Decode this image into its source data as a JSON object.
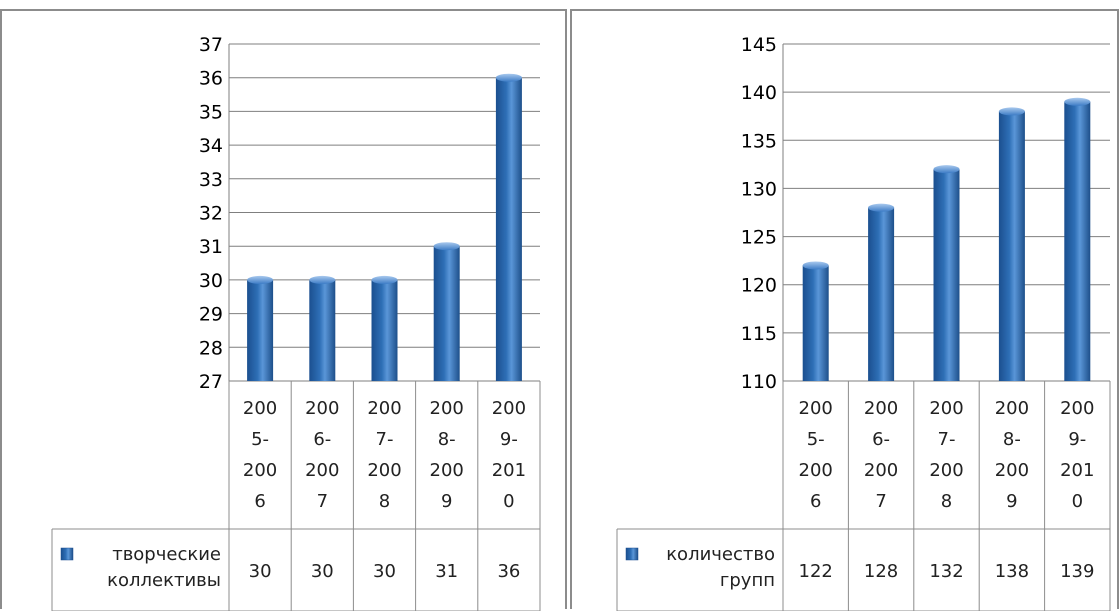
{
  "chart_data": [
    {
      "type": "bar",
      "categories": [
        "2005-2006",
        "2006-2007",
        "2007-2008",
        "2008-2009",
        "2009-2010"
      ],
      "category_lines": [
        [
          "200",
          "5-",
          "200",
          "6"
        ],
        [
          "200",
          "6-",
          "200",
          "7"
        ],
        [
          "200",
          "7-",
          "200",
          "8"
        ],
        [
          "200",
          "8-",
          "200",
          "9"
        ],
        [
          "200",
          "9-",
          "201",
          "0"
        ]
      ],
      "series": [
        {
          "name": "творческие коллективы",
          "name_lines": [
            "творческие",
            "коллективы"
          ],
          "values": [
            30,
            30,
            30,
            31,
            36
          ]
        }
      ],
      "ylim": [
        27,
        37
      ],
      "yticks": [
        27,
        28,
        29,
        30,
        31,
        32,
        33,
        34,
        35,
        36,
        37
      ],
      "grid": true,
      "legend": "data-table",
      "bar_color": "#2e6fb6"
    },
    {
      "type": "bar",
      "categories": [
        "2005-2006",
        "2006-2007",
        "2007-2008",
        "2008-2009",
        "2009-2010"
      ],
      "category_lines": [
        [
          "200",
          "5-",
          "200",
          "6"
        ],
        [
          "200",
          "6-",
          "200",
          "7"
        ],
        [
          "200",
          "7-",
          "200",
          "8"
        ],
        [
          "200",
          "8-",
          "200",
          "9"
        ],
        [
          "200",
          "9-",
          "201",
          "0"
        ]
      ],
      "series": [
        {
          "name": "количество групп",
          "name_lines": [
            "количество",
            "групп"
          ],
          "values": [
            122,
            128,
            132,
            138,
            139
          ]
        }
      ],
      "ylim": [
        110,
        145
      ],
      "yticks": [
        110,
        115,
        120,
        125,
        130,
        135,
        140,
        145
      ],
      "grid": true,
      "legend": "data-table",
      "bar_color": "#2e6fb6"
    }
  ]
}
